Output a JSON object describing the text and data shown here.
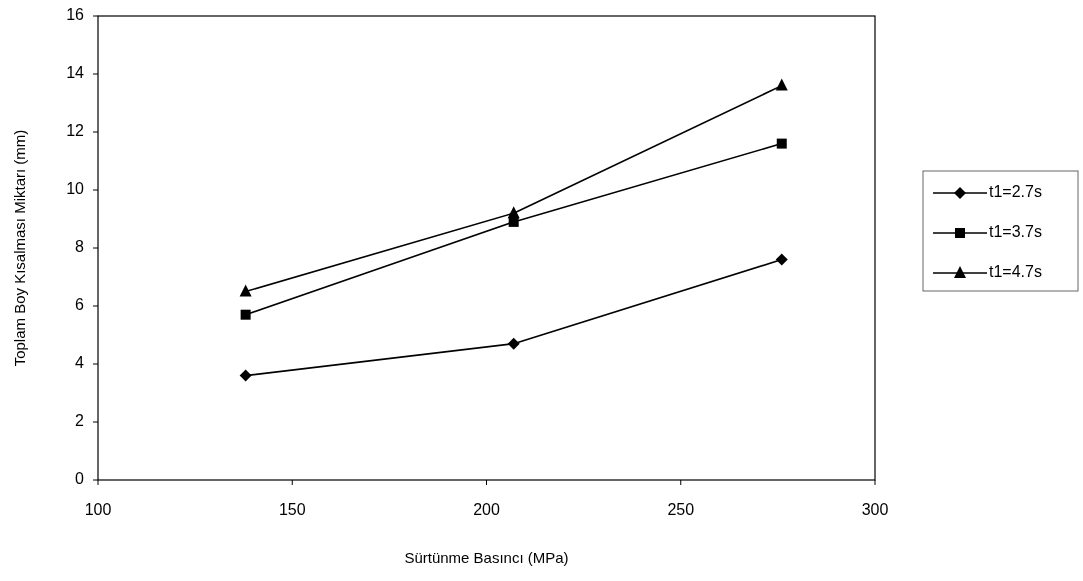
{
  "chart_data": {
    "type": "line",
    "xlabel": "Sürtünme Basıncı (MPa)",
    "ylabel": "Toplam Boy Kısalması Miktarı (mm)",
    "x": [
      138,
      207,
      276
    ],
    "series": [
      {
        "name": "t1=2.7s",
        "color": "#000000",
        "marker": "diamond",
        "values": [
          3.6,
          4.7,
          7.6
        ]
      },
      {
        "name": "t1=3.7s",
        "color": "#000000",
        "marker": "square",
        "values": [
          5.7,
          8.9,
          11.6
        ]
      },
      {
        "name": "t1=4.7s",
        "color": "#000000",
        "marker": "triangle",
        "values": [
          6.5,
          9.2,
          13.6
        ]
      }
    ],
    "xlim": [
      100,
      300
    ],
    "xticks": [
      100,
      150,
      200,
      250,
      300
    ],
    "ylim": [
      0,
      16
    ],
    "yticks": [
      0,
      2,
      4,
      6,
      8,
      10,
      12,
      14,
      16
    ],
    "grid": false,
    "legend": "right",
    "line_style": "solid"
  }
}
